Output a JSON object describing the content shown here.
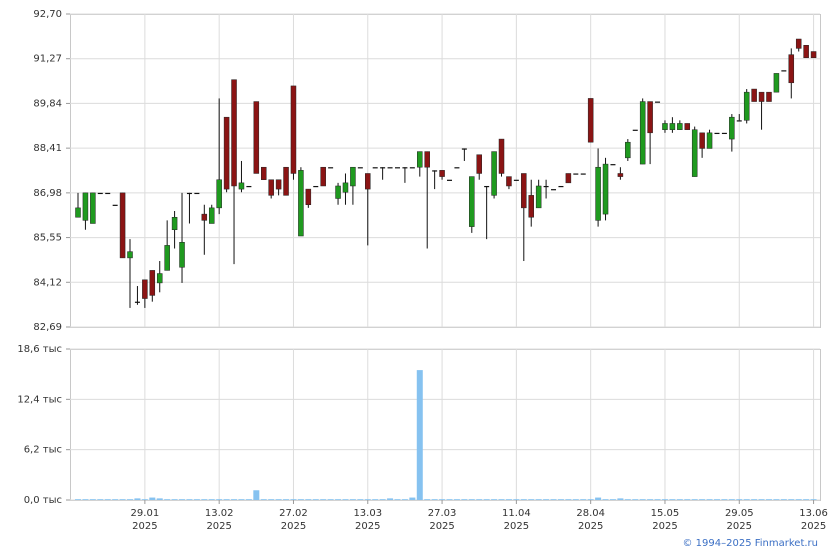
{
  "chart_data": [
    {
      "type": "candlestick",
      "up_color": "#1f9a1f",
      "down_color": "#8b1414",
      "flat_color": "#111111",
      "grid": true,
      "ylim": [
        82.69,
        92.7
      ],
      "yticks": [
        {
          "value": 82.69,
          "label": "82,69"
        },
        {
          "value": 84.12,
          "label": "84,12"
        },
        {
          "value": 85.55,
          "label": "85,55"
        },
        {
          "value": 86.98,
          "label": "86,98"
        },
        {
          "value": 88.41,
          "label": "88,41"
        },
        {
          "value": 89.84,
          "label": "89,84"
        },
        {
          "value": 91.27,
          "label": "91,27"
        },
        {
          "value": 92.7,
          "label": "92,70"
        }
      ],
      "open": [
        86.2,
        86.1,
        86.0,
        86.98,
        86.98,
        86.6,
        86.98,
        84.9,
        83.5,
        84.2,
        84.5,
        84.1,
        84.5,
        85.8,
        84.6,
        86.98,
        86.98,
        86.3,
        86.0,
        86.5,
        89.4,
        90.6,
        87.1,
        87.2,
        89.9,
        87.8,
        87.4,
        87.4,
        87.8,
        90.4,
        85.6,
        87.1,
        87.2,
        87.8,
        87.8,
        86.8,
        87.0,
        87.2,
        87.8,
        87.6,
        87.8,
        87.8,
        87.8,
        87.8,
        87.8,
        87.8,
        87.8,
        88.3,
        87.7,
        87.7,
        87.4,
        87.8,
        88.4,
        85.9,
        88.2,
        87.2,
        86.9,
        88.7,
        87.5,
        87.4,
        87.6,
        86.9,
        86.5,
        87.2,
        87.1,
        87.2,
        87.6,
        87.6,
        87.6,
        90.0,
        86.1,
        86.3,
        87.9,
        87.6,
        88.1,
        89.0,
        87.9,
        89.9,
        89.9,
        89.0,
        89.0,
        89.0,
        89.2,
        87.5,
        88.9,
        88.4,
        88.9,
        88.9,
        88.7,
        89.3,
        89.3,
        90.3,
        90.2,
        90.2,
        90.2,
        90.9,
        91.4,
        91.9,
        91.7,
        91.5
      ],
      "high": [
        86.98,
        86.98,
        86.98,
        86.98,
        86.98,
        86.6,
        86.98,
        85.5,
        84.0,
        84.2,
        84.5,
        84.8,
        86.1,
        86.4,
        86.98,
        86.98,
        86.98,
        86.6,
        86.6,
        90.0,
        89.4,
        90.6,
        88.0,
        87.2,
        89.9,
        87.8,
        87.4,
        87.4,
        87.8,
        90.4,
        87.8,
        87.1,
        87.2,
        87.8,
        87.8,
        87.3,
        87.6,
        87.8,
        87.8,
        87.6,
        87.8,
        87.8,
        87.8,
        87.8,
        87.8,
        87.8,
        88.3,
        88.3,
        87.7,
        87.7,
        87.4,
        87.8,
        88.4,
        87.5,
        88.2,
        87.2,
        88.3,
        88.7,
        87.5,
        87.4,
        87.6,
        87.4,
        87.4,
        87.4,
        87.1,
        87.2,
        87.6,
        87.6,
        87.6,
        90.0,
        88.4,
        88.1,
        87.9,
        87.8,
        88.7,
        89.0,
        90.0,
        89.9,
        89.9,
        89.3,
        89.4,
        89.3,
        89.2,
        89.1,
        88.9,
        89.0,
        88.9,
        88.9,
        89.5,
        89.5,
        90.3,
        90.3,
        90.2,
        90.2,
        90.8,
        90.9,
        91.6,
        91.9,
        91.7,
        91.5
      ],
      "low": [
        86.2,
        85.8,
        86.0,
        86.98,
        86.98,
        86.6,
        84.9,
        83.3,
        83.4,
        83.3,
        83.5,
        83.8,
        84.5,
        85.2,
        84.1,
        86.0,
        86.98,
        85.0,
        86.0,
        86.3,
        87.0,
        84.7,
        87.0,
        87.2,
        87.6,
        87.4,
        86.8,
        86.9,
        86.9,
        87.4,
        85.6,
        86.5,
        87.2,
        87.2,
        87.8,
        86.6,
        86.6,
        86.6,
        87.8,
        85.3,
        87.8,
        87.4,
        87.8,
        87.8,
        87.3,
        87.8,
        87.5,
        85.2,
        87.1,
        87.4,
        87.4,
        87.8,
        88.0,
        85.7,
        87.4,
        85.5,
        86.8,
        87.5,
        87.1,
        87.4,
        84.8,
        85.9,
        86.5,
        86.8,
        87.1,
        87.2,
        87.3,
        87.6,
        87.6,
        88.6,
        85.9,
        86.1,
        87.9,
        87.4,
        88.0,
        89.0,
        87.9,
        87.9,
        89.9,
        88.9,
        88.9,
        89.0,
        89.0,
        87.5,
        88.1,
        88.4,
        88.9,
        88.9,
        88.3,
        89.3,
        89.2,
        89.9,
        89.0,
        89.9,
        90.2,
        90.9,
        90.0,
        91.5,
        91.3,
        91.3
      ],
      "close": [
        86.5,
        86.98,
        86.98,
        86.98,
        86.98,
        86.6,
        84.9,
        85.1,
        83.5,
        83.6,
        83.7,
        84.4,
        85.3,
        86.2,
        85.4,
        86.98,
        86.98,
        86.1,
        86.5,
        87.4,
        87.1,
        87.2,
        87.3,
        87.2,
        87.6,
        87.4,
        86.9,
        87.1,
        86.9,
        87.6,
        87.7,
        86.6,
        87.2,
        87.2,
        87.8,
        87.2,
        87.3,
        87.8,
        87.8,
        87.1,
        87.8,
        87.8,
        87.8,
        87.8,
        87.8,
        87.8,
        88.3,
        87.8,
        87.7,
        87.5,
        87.4,
        87.8,
        88.4,
        87.5,
        87.6,
        87.2,
        88.3,
        87.6,
        87.2,
        87.4,
        86.5,
        86.2,
        87.2,
        87.2,
        87.1,
        87.2,
        87.3,
        87.6,
        87.6,
        88.6,
        87.8,
        87.9,
        87.9,
        87.5,
        88.6,
        89.0,
        89.9,
        88.9,
        89.9,
        89.2,
        89.2,
        89.2,
        89.0,
        89.0,
        88.4,
        88.9,
        88.9,
        88.9,
        89.4,
        89.3,
        90.2,
        89.9,
        89.9,
        89.9,
        90.8,
        90.9,
        90.5,
        91.6,
        91.3,
        91.3
      ]
    },
    {
      "type": "bar",
      "color": "#86c2f0",
      "grid": true,
      "ylim": [
        0,
        18.6
      ],
      "yticks": [
        {
          "value": 0,
          "label": "0,0 тыс"
        },
        {
          "value": 6.2,
          "label": "6,2 тыс"
        },
        {
          "value": 12.4,
          "label": "12,4 тыс"
        },
        {
          "value": 18.6,
          "label": "18,6 тыс"
        }
      ],
      "xticks": [
        {
          "value": 9,
          "label": [
            "29.01",
            "2025"
          ]
        },
        {
          "value": 19,
          "label": [
            "13.02",
            "2025"
          ]
        },
        {
          "value": 29,
          "label": [
            "27.02",
            "2025"
          ]
        },
        {
          "value": 39,
          "label": [
            "13.03",
            "2025"
          ]
        },
        {
          "value": 49,
          "label": [
            "27.03",
            "2025"
          ]
        },
        {
          "value": 59,
          "label": [
            "11.04",
            "2025"
          ]
        },
        {
          "value": 69,
          "label": [
            "28.04",
            "2025"
          ]
        },
        {
          "value": 79,
          "label": [
            "15.05",
            "2025"
          ]
        },
        {
          "value": 89,
          "label": [
            "29.05",
            "2025"
          ]
        },
        {
          "value": 99,
          "label": [
            "13.06",
            "2025"
          ]
        }
      ],
      "values": [
        0.1,
        0.1,
        0.1,
        0.1,
        0.1,
        0.1,
        0.1,
        0.1,
        0.2,
        0.1,
        0.3,
        0.2,
        0.1,
        0.1,
        0.1,
        0.1,
        0.1,
        0.1,
        0.1,
        0.1,
        0.1,
        0.1,
        0.1,
        0.1,
        1.2,
        0.1,
        0.1,
        0.1,
        0.1,
        0.1,
        0.1,
        0.1,
        0.1,
        0.1,
        0.1,
        0.1,
        0.1,
        0.1,
        0.1,
        0.1,
        0.1,
        0.1,
        0.2,
        0.1,
        0.1,
        0.3,
        16.0,
        0.1,
        0.1,
        0.1,
        0.1,
        0.1,
        0.1,
        0.1,
        0.1,
        0.1,
        0.1,
        0.1,
        0.1,
        0.1,
        0.1,
        0.1,
        0.1,
        0.1,
        0.1,
        0.1,
        0.1,
        0.1,
        0.1,
        0.1,
        0.3,
        0.1,
        0.1,
        0.2,
        0.1,
        0.1,
        0.1,
        0.1,
        0.1,
        0.1,
        0.1,
        0.1,
        0.1,
        0.1,
        0.1,
        0.1,
        0.1,
        0.1,
        0.1,
        0.1,
        0.1,
        0.1,
        0.1,
        0.1,
        0.1,
        0.1,
        0.1,
        0.1,
        0.1,
        0.1
      ]
    }
  ],
  "footer": "© 1994–2025 Finmarket.ru"
}
